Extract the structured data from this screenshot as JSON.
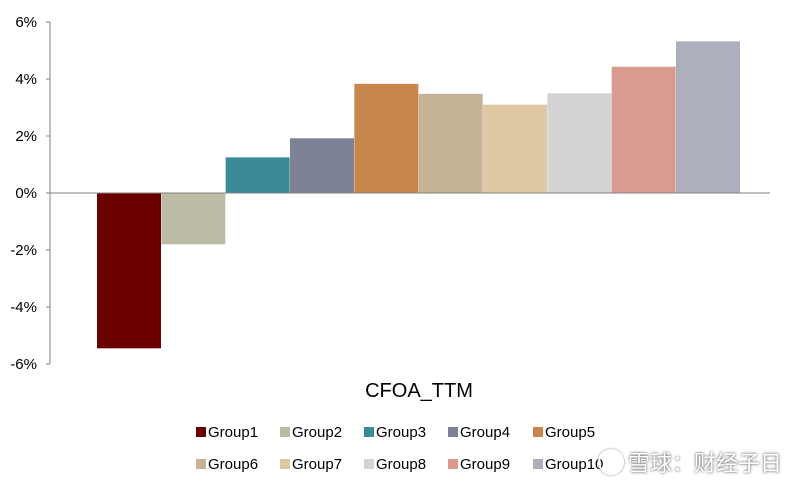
{
  "chart_data": {
    "type": "bar",
    "title": "",
    "xlabel": "CFOA_TTM",
    "ylabel": "",
    "ylim": [
      -6,
      6
    ],
    "yticks": [
      6,
      4,
      2,
      0,
      -2,
      -4,
      -6
    ],
    "ytick_suffix": "%",
    "grid": false,
    "legend_position": "bottom",
    "categories": [
      "Group1",
      "Group2",
      "Group3",
      "Group4",
      "Group5",
      "Group6",
      "Group7",
      "Group8",
      "Group9",
      "Group10"
    ],
    "values": [
      -5.45,
      -1.8,
      1.25,
      1.92,
      3.83,
      3.48,
      3.1,
      3.5,
      4.43,
      5.32
    ],
    "colors": [
      "#6b0000",
      "#bcbba5",
      "#3a8a99",
      "#7d8296",
      "#c8864d",
      "#c6b397",
      "#dfc8a4",
      "#d3d3d5",
      "#d99b90",
      "#adb0bc"
    ]
  },
  "watermark": "雪球：财经子日"
}
